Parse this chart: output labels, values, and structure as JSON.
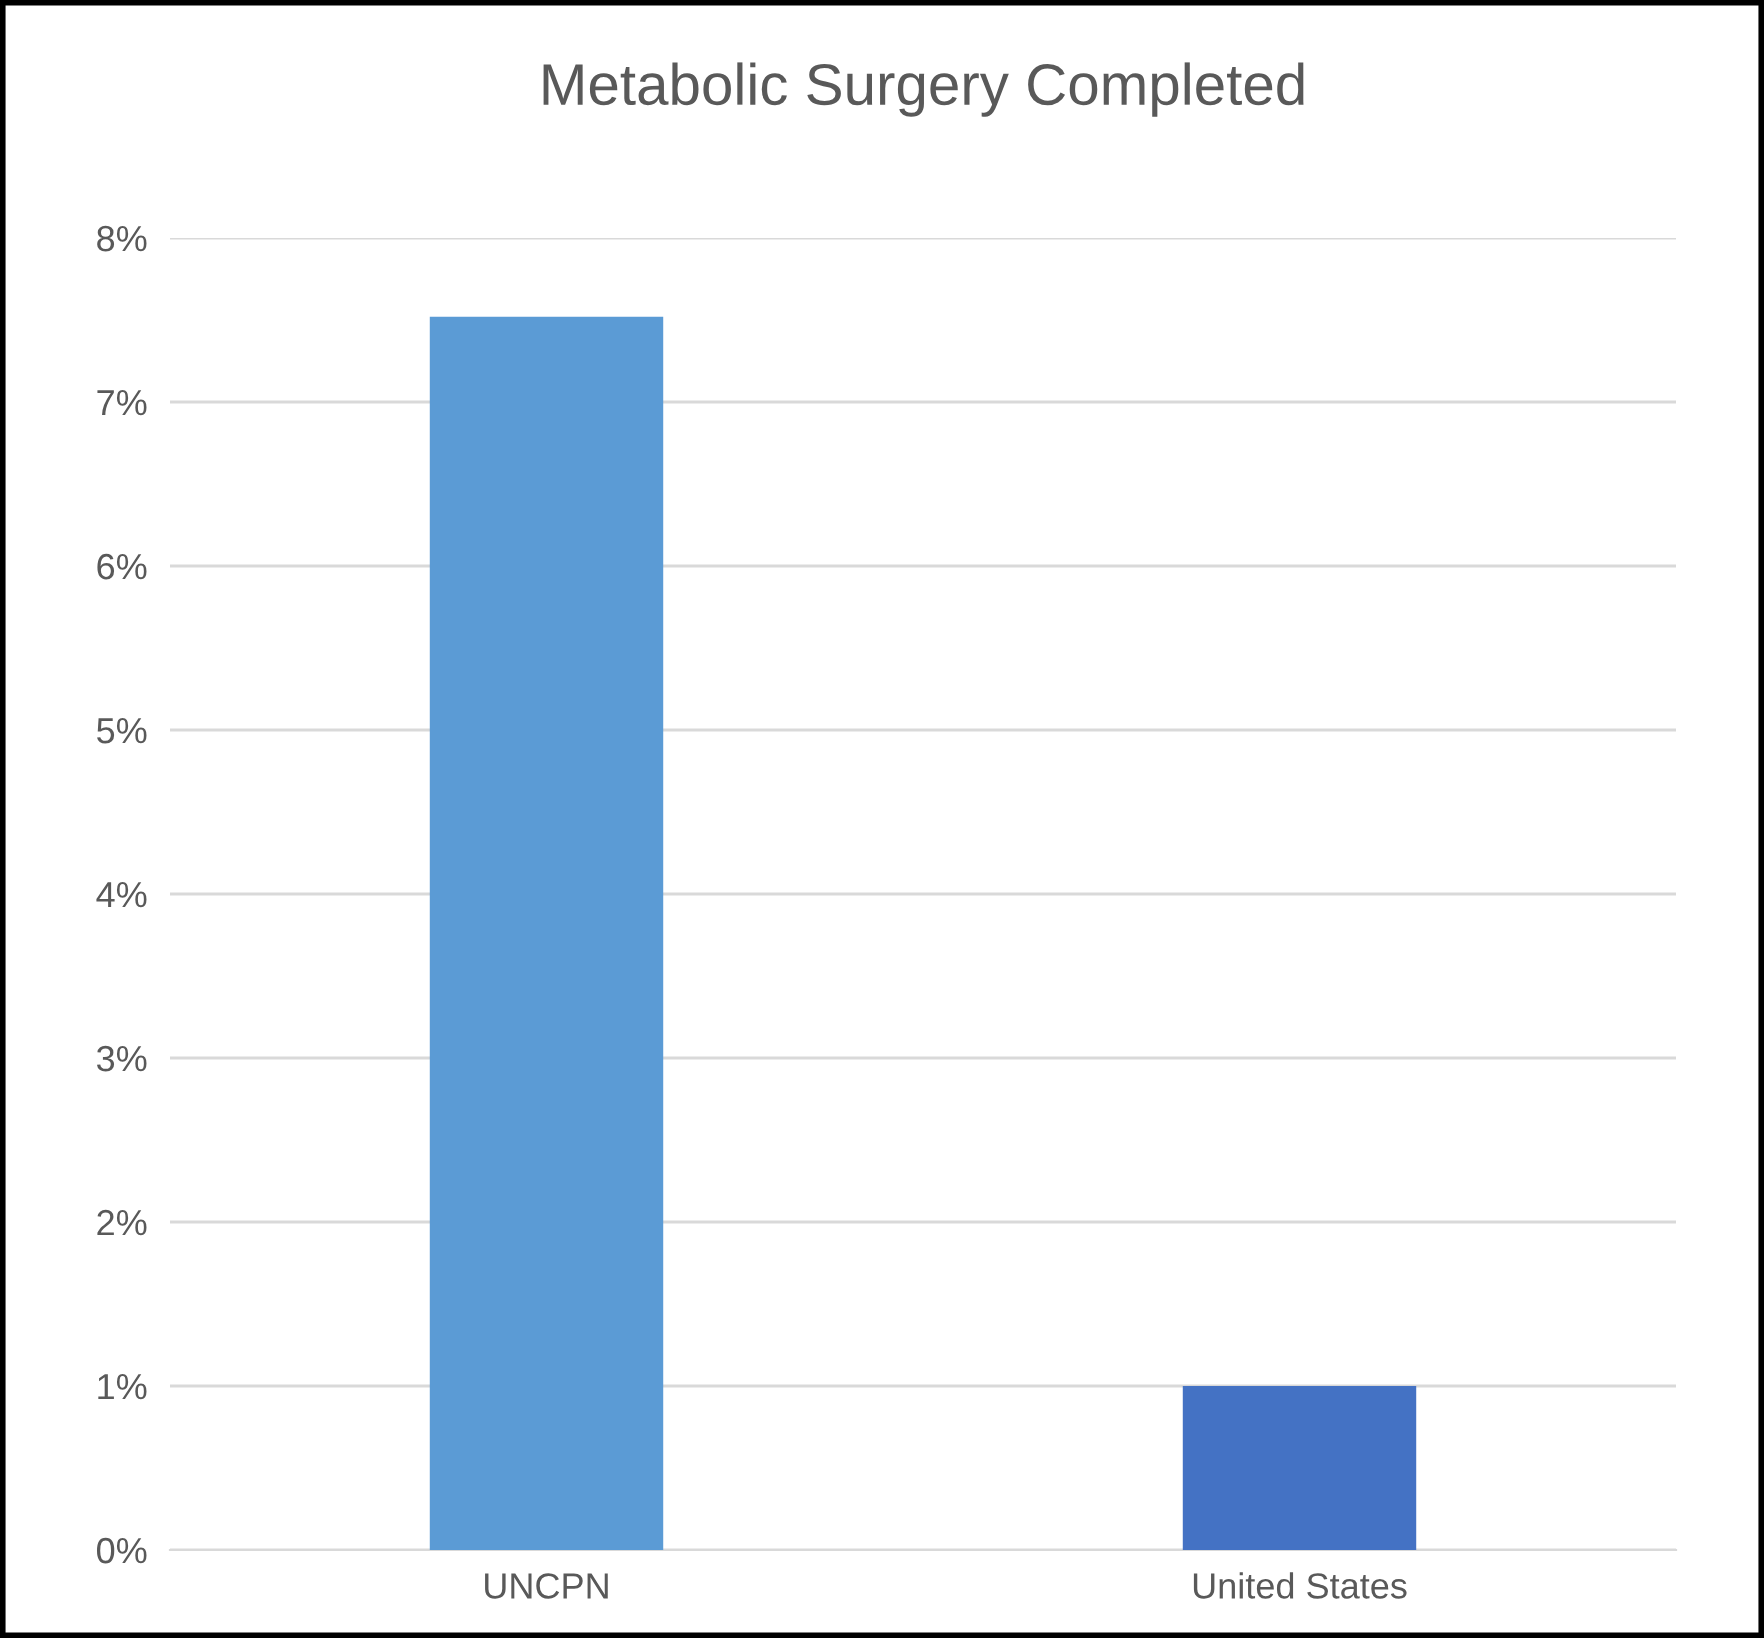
{
  "chart_data": {
    "type": "bar",
    "title": "Metabolic Surgery Completed",
    "categories": [
      "UNCPN",
      "United States"
    ],
    "values": [
      7.52,
      1.0
    ],
    "colors": [
      "#5b9bd5",
      "#4472c4"
    ],
    "ylim": [
      0,
      8
    ],
    "yticks": [
      {
        "value": 0,
        "label": "0%"
      },
      {
        "value": 1,
        "label": "1%"
      },
      {
        "value": 2,
        "label": "2%"
      },
      {
        "value": 3,
        "label": "3%"
      },
      {
        "value": 4,
        "label": "4%"
      },
      {
        "value": 5,
        "label": "5%"
      },
      {
        "value": 6,
        "label": "6%"
      },
      {
        "value": 7,
        "label": "7%"
      },
      {
        "value": 8,
        "label": "8%"
      }
    ],
    "grid": "y",
    "legend": false
  }
}
